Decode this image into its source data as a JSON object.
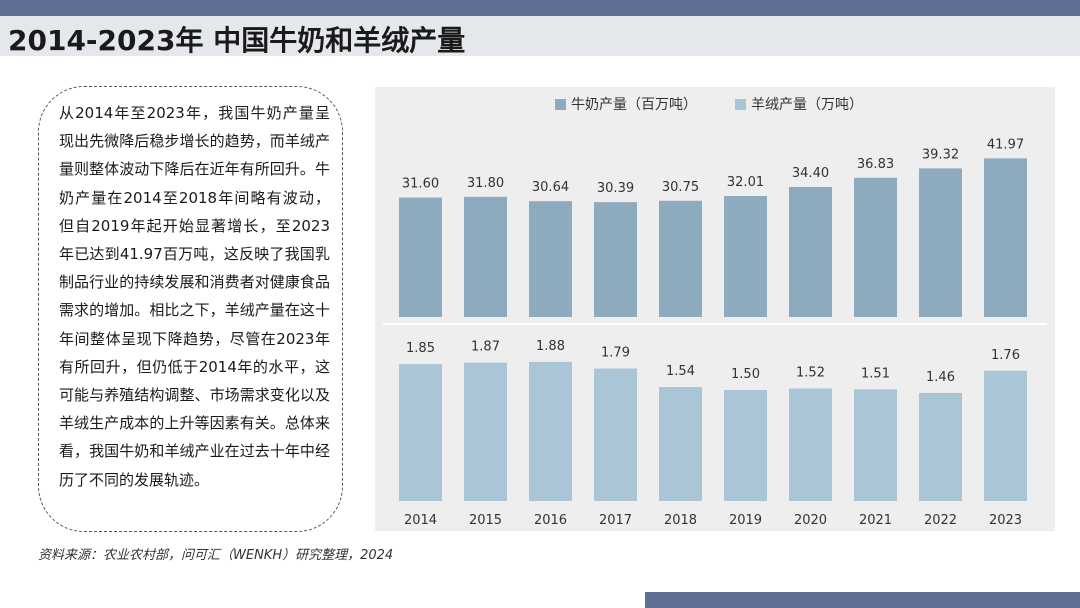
{
  "page": {
    "title": "2014-2023年 中国牛奶和羊绒产量",
    "description": "从2014年至2023年，我国牛奶产量呈现出先微降后稳步增长的趋势，而羊绒产量则整体波动下降后在近年有所回升。牛奶产量在2014至2018年间略有波动，但自2019年起开始显著增长，至2023年已达到41.97百万吨，这反映了我国乳制品行业的持续发展和消费者对健康食品需求的增加。相比之下，羊绒产量在这十年间整体呈现下降趋势，尽管在2023年有所回升，但仍低于2014年的水平，这可能与养殖结构调整、市场需求变化以及羊绒生产成本的上升等因素有关。总体来看，我国牛奶和羊绒产业在过去十年中经历了不同的发展轨迹。",
    "source": "资料来源：农业农村部，问可汇（WENKH）研究整理，2024"
  },
  "colors": {
    "milk": "#8eaabf",
    "cashmere": "#a9c5d6",
    "accent_bar": "#5f6f96"
  },
  "chart_data": {
    "type": "bar",
    "categories": [
      "2014",
      "2015",
      "2016",
      "2017",
      "2018",
      "2019",
      "2020",
      "2021",
      "2022",
      "2023"
    ],
    "series": [
      {
        "name": "牛奶产量（百万吨）",
        "values": [
          31.6,
          31.8,
          30.64,
          30.39,
          30.75,
          32.01,
          34.4,
          36.83,
          39.32,
          41.97
        ],
        "labels": [
          "31.60",
          "31.80",
          "30.64",
          "30.39",
          "30.75",
          "32.01",
          "34.40",
          "36.83",
          "39.32",
          "41.97"
        ]
      },
      {
        "name": "羊绒产量（万吨）",
        "values": [
          1.85,
          1.87,
          1.88,
          1.79,
          1.54,
          1.5,
          1.52,
          1.51,
          1.46,
          1.76
        ],
        "labels": [
          "1.85",
          "1.87",
          "1.88",
          "1.79",
          "1.54",
          "1.50",
          "1.52",
          "1.51",
          "1.46",
          "1.76"
        ]
      }
    ],
    "legend_position": "top",
    "grid": false
  }
}
